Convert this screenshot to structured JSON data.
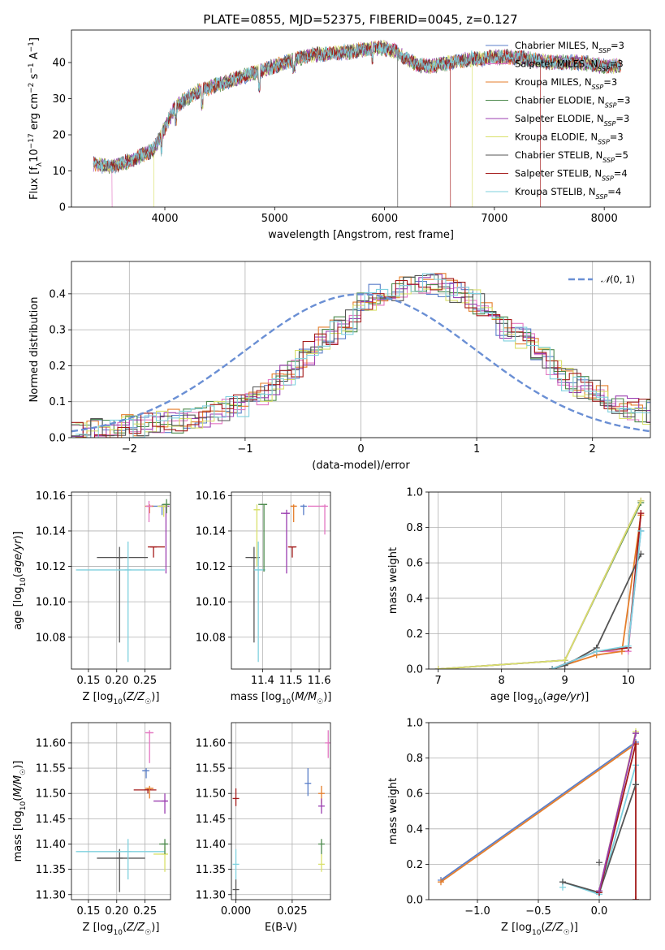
{
  "chart_data": [
    {
      "id": "spectrum",
      "type": "line",
      "title": "PLATE=0855, MJD=52375, FIBERID=0045, z=0.127",
      "xlabel": "wavelength [Angstrom, rest frame]",
      "ylabel": "Flux [f_λ 10^-17 erg cm^-2 s^-1 A^-1]",
      "xlim": [
        3150,
        8420
      ],
      "ylim": [
        0,
        49
      ],
      "xticks": [
        4000,
        5000,
        6000,
        7000,
        8000
      ],
      "yticks": [
        0,
        10,
        20,
        30,
        40
      ],
      "grid": false,
      "legend_position": "top-right",
      "legend": [
        "Chabrier MILES, N_SSP=3",
        "Salpeter MILES, N_SSP=3",
        "Kroupa MILES, N_SSP=3",
        "Chabrier ELODIE, N_SSP=3",
        "Salpeter ELODIE, N_SSP=3",
        "Kroupa ELODIE, N_SSP=3",
        "Chabrier STELIB, N_SSP=5",
        "Salpeter STELIB, N_SSP=4",
        "Kroupa STELIB, N_SSP=4"
      ],
      "continuum": {
        "x": [
          3350,
          3500,
          3700,
          3900,
          4000,
          4100,
          4300,
          4500,
          4700,
          4900,
          5100,
          5300,
          5500,
          5700,
          5900,
          6000,
          6100,
          6200,
          6300,
          6400,
          6500,
          6600,
          6700,
          6800,
          6900,
          7000,
          7100,
          7200,
          7300,
          7400,
          7500,
          7600,
          7700,
          7800,
          7900,
          8000,
          8150
        ],
        "y": [
          12,
          11,
          13,
          16,
          22,
          28,
          32,
          34,
          36,
          38,
          40,
          42,
          42.5,
          43,
          44,
          44,
          43,
          41,
          39.5,
          39,
          39.5,
          40,
          40.5,
          41,
          41,
          41.5,
          41.5,
          41.5,
          41,
          40.5,
          40,
          40,
          40,
          40,
          39.5,
          39,
          39
        ]
      },
      "model_edges": [
        {
          "series": "Salpeter MILES, N_SSP=3",
          "x": 3520
        },
        {
          "series": "Kroupa ELODIE, N_SSP=3",
          "x": 3900
        },
        {
          "series": "Chabrier STELIB, N_SSP=5",
          "x": 6120
        },
        {
          "series": "Salpeter STELIB, N_SSP=4",
          "x": 6600
        },
        {
          "series": "Kroupa ELODIE, N_SSP=3",
          "x": 6800
        },
        {
          "series": "Salpeter STELIB, N_SSP=4",
          "x": 7420
        }
      ]
    },
    {
      "id": "residuals",
      "type": "line",
      "xlabel": "(data-model)/error",
      "ylabel": "Normed distribution",
      "xlim": [
        -2.5,
        2.5
      ],
      "ylim": [
        0,
        0.49
      ],
      "xticks": [
        -2,
        -1,
        0,
        1,
        2
      ],
      "yticks": [
        0.0,
        0.1,
        0.2,
        0.3,
        0.4
      ],
      "grid": true,
      "legend_position": "top-right",
      "legend": [
        "N(0,1)"
      ],
      "bin_width": 0.1,
      "histogram_envelope": {
        "x": [
          -2.5,
          -2.0,
          -1.5,
          -1.0,
          -0.7,
          -0.5,
          -0.3,
          -0.1,
          0.0,
          0.2,
          0.4,
          0.5,
          0.6,
          0.7,
          0.9,
          1.0,
          1.2,
          1.4,
          1.6,
          1.8,
          2.0,
          2.2,
          2.5
        ],
        "y": [
          0.015,
          0.03,
          0.05,
          0.09,
          0.15,
          0.22,
          0.28,
          0.32,
          0.37,
          0.41,
          0.42,
          0.43,
          0.43,
          0.42,
          0.39,
          0.38,
          0.32,
          0.28,
          0.22,
          0.16,
          0.13,
          0.09,
          0.07
        ]
      }
    },
    {
      "id": "age_vs_Z",
      "type": "scatter",
      "xlabel": "Z [log10(Z/Z☉)]",
      "ylabel": "age  [log10(age/yr)]",
      "xlim": [
        0.12,
        0.295
      ],
      "ylim": [
        10.062,
        10.162
      ],
      "xticks": [
        0.15,
        0.2,
        0.25
      ],
      "yticks": [
        10.08,
        10.1,
        10.12,
        10.14,
        10.16
      ],
      "grid": true,
      "points": [
        {
          "series": "Chabrier STELIB",
          "x": 0.205,
          "xerr": [
            0.165,
            0.255
          ],
          "y": 10.125,
          "yerr": [
            10.077,
            10.131
          ]
        },
        {
          "series": "Kroupa STELIB",
          "x": 0.22,
          "xerr": [
            0.128,
            0.285
          ],
          "y": 10.118,
          "yerr": [
            10.066,
            10.134
          ]
        },
        {
          "series": "Salpeter STELIB",
          "x": 0.265,
          "xerr": [
            0.255,
            0.285
          ],
          "y": 10.131,
          "yerr": [
            10.125,
            10.131
          ]
        },
        {
          "series": "Chabrier MILES",
          "x": 0.28,
          "xerr": [
            0.262,
            0.29
          ],
          "y": 10.154,
          "yerr": [
            10.149,
            10.155
          ]
        },
        {
          "series": "Salpeter ELODIE",
          "x": 0.287,
          "xerr": [
            0.275,
            0.29
          ],
          "y": 10.154,
          "yerr": [
            10.116,
            10.155
          ]
        },
        {
          "series": "Kroupa MILES",
          "x": 0.258,
          "xerr": [
            0.25,
            0.265
          ],
          "y": 10.154,
          "yerr": [
            10.15,
            10.155
          ]
        },
        {
          "series": "Salpeter MILES",
          "x": 0.257,
          "xerr": [
            0.252,
            0.262
          ],
          "y": 10.154,
          "yerr": [
            10.145,
            10.157
          ]
        },
        {
          "series": "Kroupa ELODIE",
          "x": 0.283,
          "xerr": [
            0.272,
            0.29
          ],
          "y": 10.154,
          "yerr": [
            10.148,
            10.155
          ]
        },
        {
          "series": "Chabrier ELODIE",
          "x": 0.288,
          "xerr": [
            0.28,
            0.292
          ],
          "y": 10.155,
          "yerr": [
            10.15,
            10.158
          ]
        }
      ]
    },
    {
      "id": "age_vs_mass",
      "type": "scatter",
      "xlabel": "mass [log10(M/M☉)]",
      "ylabel": "",
      "xlim": [
        11.29,
        11.64
      ],
      "ylim": [
        10.062,
        10.162
      ],
      "xticks": [
        11.4,
        11.5,
        11.6
      ],
      "yticks": [
        10.08,
        10.1,
        10.12,
        10.14,
        10.16
      ],
      "grid": true,
      "points": [
        {
          "series": "Chabrier STELIB",
          "x": 11.37,
          "xerr": [
            11.34,
            11.39
          ],
          "y": 10.125,
          "yerr": [
            10.077,
            10.131
          ]
        },
        {
          "series": "Kroupa STELIB",
          "x": 11.385,
          "xerr": [
            11.37,
            11.41
          ],
          "y": 10.118,
          "yerr": [
            10.066,
            10.134
          ]
        },
        {
          "series": "Chabrier ELODIE",
          "x": 11.405,
          "xerr": [
            11.385,
            11.415
          ],
          "y": 10.155,
          "yerr": [
            10.117,
            10.155
          ]
        },
        {
          "series": "Kroupa ELODIE",
          "x": 11.38,
          "xerr": [
            11.37,
            11.39
          ],
          "y": 10.152,
          "yerr": [
            10.12,
            10.155
          ]
        },
        {
          "series": "Salpeter STELIB",
          "x": 11.505,
          "xerr": [
            11.49,
            11.52
          ],
          "y": 10.131,
          "yerr": [
            10.125,
            10.131
          ]
        },
        {
          "series": "Salpeter ELODIE",
          "x": 11.485,
          "xerr": [
            11.465,
            11.495
          ],
          "y": 10.15,
          "yerr": [
            10.116,
            10.152
          ]
        },
        {
          "series": "Kroupa MILES",
          "x": 11.51,
          "xerr": [
            11.5,
            11.52
          ],
          "y": 10.154,
          "yerr": [
            10.145,
            10.155
          ]
        },
        {
          "series": "Chabrier MILES",
          "x": 11.545,
          "xerr": [
            11.535,
            11.55
          ],
          "y": 10.154,
          "yerr": [
            10.149,
            10.155
          ]
        },
        {
          "series": "Salpeter MILES",
          "x": 11.62,
          "xerr": [
            11.56,
            11.625
          ],
          "y": 10.154,
          "yerr": [
            10.138,
            10.155
          ]
        }
      ]
    },
    {
      "id": "mass_weight_vs_age",
      "type": "line",
      "xlabel": "age  [log10(age/yr)]",
      "ylabel": "mass weight",
      "xlim": [
        6.85,
        10.35
      ],
      "ylim": [
        0,
        1.0
      ],
      "xticks": [
        7,
        8,
        9,
        10
      ],
      "yticks": [
        0.0,
        0.2,
        0.4,
        0.6,
        0.8,
        1.0
      ],
      "grid": true,
      "series": [
        {
          "name": "Chabrier MILES",
          "x": [
            8.8,
            9.5,
            10.0,
            10.2
          ],
          "y": [
            0.0,
            0.1,
            0.12,
            0.78
          ]
        },
        {
          "name": "Salpeter MILES",
          "x": [
            8.8,
            9.5,
            10.0,
            10.2
          ],
          "y": [
            0.0,
            0.1,
            0.1,
            0.88
          ]
        },
        {
          "name": "Kroupa MILES",
          "x": [
            8.8,
            9.5,
            9.9,
            10.2
          ],
          "y": [
            0.0,
            0.08,
            0.1,
            0.87
          ]
        },
        {
          "name": "Chabrier ELODIE",
          "x": [
            7.0,
            9.0,
            10.2
          ],
          "y": [
            0.0,
            0.05,
            0.94
          ]
        },
        {
          "name": "Salpeter ELODIE",
          "x": [
            7.0,
            9.0,
            10.2
          ],
          "y": [
            0.0,
            0.05,
            0.95
          ]
        },
        {
          "name": "Kroupa ELODIE",
          "x": [
            7.0,
            9.0,
            10.2
          ],
          "y": [
            0.0,
            0.05,
            0.95
          ]
        },
        {
          "name": "Chabrier STELIB",
          "x": [
            8.8,
            9.0,
            9.5,
            10.2
          ],
          "y": [
            0.0,
            0.02,
            0.12,
            0.65
          ]
        },
        {
          "name": "Salpeter STELIB",
          "x": [
            8.8,
            9.5,
            10.0,
            10.2
          ],
          "y": [
            0.0,
            0.1,
            0.12,
            0.88
          ]
        },
        {
          "name": "Kroupa STELIB",
          "x": [
            8.8,
            9.5,
            10.0,
            10.2
          ],
          "y": [
            0.0,
            0.1,
            0.13,
            0.78
          ]
        }
      ]
    },
    {
      "id": "mass_vs_Z",
      "type": "scatter",
      "xlabel": "Z [log10(Z/Z☉)]",
      "ylabel": "mass [log10(M/M☉)]",
      "xlim": [
        0.12,
        0.295
      ],
      "ylim": [
        11.29,
        11.64
      ],
      "xticks": [
        0.15,
        0.2,
        0.25
      ],
      "yticks": [
        11.3,
        11.35,
        11.4,
        11.45,
        11.5,
        11.55,
        11.6
      ],
      "grid": true,
      "points": [
        {
          "series": "Chabrier STELIB",
          "x": 0.205,
          "xerr": [
            0.165,
            0.25
          ],
          "y": 11.372,
          "yerr": [
            11.305,
            11.39
          ]
        },
        {
          "series": "Kroupa STELIB",
          "x": 0.22,
          "xerr": [
            0.128,
            0.285
          ],
          "y": 11.385,
          "yerr": [
            11.33,
            11.41
          ]
        },
        {
          "series": "Salpeter STELIB",
          "x": 0.255,
          "xerr": [
            0.23,
            0.27
          ],
          "y": 11.507,
          "yerr": [
            11.5,
            11.51
          ]
        },
        {
          "series": "Salpeter ELODIE",
          "x": 0.285,
          "xerr": [
            0.265,
            0.29
          ],
          "y": 11.485,
          "yerr": [
            11.46,
            11.5
          ]
        },
        {
          "series": "Kroupa ELODIE",
          "x": 0.285,
          "xerr": [
            0.265,
            0.29
          ],
          "y": 11.38,
          "yerr": [
            11.345,
            11.395
          ]
        },
        {
          "series": "Chabrier ELODIE",
          "x": 0.285,
          "xerr": [
            0.275,
            0.29
          ],
          "y": 11.4,
          "yerr": [
            11.38,
            11.41
          ]
        },
        {
          "series": "Chabrier MILES",
          "x": 0.252,
          "xerr": [
            0.245,
            0.255
          ],
          "y": 11.545,
          "yerr": [
            11.53,
            11.55
          ]
        },
        {
          "series": "Kroupa MILES",
          "x": 0.258,
          "xerr": [
            0.25,
            0.265
          ],
          "y": 11.51,
          "yerr": [
            11.49,
            11.515
          ]
        },
        {
          "series": "Salpeter MILES",
          "x": 0.258,
          "xerr": [
            0.25,
            0.265
          ],
          "y": 11.62,
          "yerr": [
            11.56,
            11.625
          ]
        }
      ]
    },
    {
      "id": "mass_vs_ebv",
      "type": "scatter",
      "xlabel": "E(B-V)",
      "ylabel": "",
      "xlim": [
        -0.002,
        0.042
      ],
      "ylim": [
        11.29,
        11.64
      ],
      "xticks": [
        0.0,
        0.025
      ],
      "xtick_labels": [
        "0.000",
        "0.025"
      ],
      "yticks": [
        11.3,
        11.35,
        11.4,
        11.45,
        11.5,
        11.55,
        11.6
      ],
      "grid": true,
      "points": [
        {
          "series": "Chabrier STELIB",
          "x": 0.0,
          "y": 11.31,
          "yerr": [
            11.29,
            11.33
          ]
        },
        {
          "series": "Kroupa STELIB",
          "x": 0.0,
          "y": 11.36,
          "yerr": [
            11.33,
            11.39
          ]
        },
        {
          "series": "Salpeter STELIB",
          "x": 0.0,
          "y": 11.49,
          "yerr": [
            11.475,
            11.51
          ]
        },
        {
          "series": "Chabrier MILES",
          "x": 0.032,
          "y": 11.52,
          "yerr": [
            11.495,
            11.55
          ]
        },
        {
          "series": "Kroupa MILES",
          "x": 0.038,
          "y": 11.5,
          "yerr": [
            11.48,
            11.515
          ]
        },
        {
          "series": "Salpeter ELODIE",
          "x": 0.038,
          "y": 11.475,
          "yerr": [
            11.46,
            11.49
          ]
        },
        {
          "series": "Chabrier ELODIE",
          "x": 0.038,
          "y": 11.4,
          "yerr": [
            11.38,
            11.41
          ]
        },
        {
          "series": "Kroupa ELODIE",
          "x": 0.038,
          "y": 11.36,
          "yerr": [
            11.345,
            11.38
          ]
        },
        {
          "series": "Salpeter MILES",
          "x": 0.041,
          "y": 11.6,
          "yerr": [
            11.57,
            11.625
          ]
        }
      ]
    },
    {
      "id": "mass_weight_vs_Z",
      "type": "line",
      "xlabel": "Z [log10(Z/Z☉)]",
      "ylabel": "mass weight",
      "xlim": [
        -1.4,
        0.42
      ],
      "ylim": [
        0,
        1.0
      ],
      "xticks": [
        -1.0,
        -0.5,
        0.0
      ],
      "yticks": [
        0.0,
        0.2,
        0.4,
        0.6,
        0.8,
        1.0
      ],
      "grid": true,
      "series": [
        {
          "name": "Chabrier MILES",
          "x": [
            -1.3,
            0.3
          ],
          "y": [
            0.11,
            0.89
          ]
        },
        {
          "name": "Kroupa MILES",
          "x": [
            -1.3,
            0.3
          ],
          "y": [
            0.1,
            0.88
          ]
        },
        {
          "name": "Kroupa STELIB",
          "x": [
            -0.3,
            0.0,
            0.3
          ],
          "y": [
            0.1,
            0.03,
            0.76
          ]
        },
        {
          "name": "Chabrier STELIB",
          "x": [
            -0.3,
            0.0,
            0.3
          ],
          "y": [
            0.1,
            0.04,
            0.65
          ]
        },
        {
          "name": "Chabrier ELODIE",
          "x": [
            0.0,
            0.3
          ],
          "y": [
            0.05,
            0.94
          ]
        },
        {
          "name": "Kroupa ELODIE",
          "x": [
            0.0,
            0.3
          ],
          "y": [
            0.05,
            0.95
          ]
        },
        {
          "name": "Salpeter STELIB",
          "x": [
            0.0,
            0.3,
            0.3
          ],
          "y": [
            0.04,
            0.88,
            0.0
          ]
        },
        {
          "name": "Salpeter ELODIE",
          "x": [
            0.0,
            0.3
          ],
          "y": [
            0.05,
            0.94
          ]
        }
      ],
      "markers": [
        {
          "series": "Chabrier STELIB",
          "x": 0.0,
          "y": 0.21
        },
        {
          "series": "Chabrier STELIB",
          "x": 0.3,
          "y": 0.65
        },
        {
          "series": "Kroupa STELIB",
          "x": -0.3,
          "y": 0.07
        },
        {
          "series": "Salpeter STELIB",
          "x": 0.3,
          "y": 0.0
        }
      ]
    }
  ],
  "colors": {
    "Chabrier MILES": "#5b7fc9",
    "Salpeter MILES": "#e377c2",
    "Kroupa MILES": "#e57e2b",
    "Chabrier ELODIE": "#4d8a4d",
    "Salpeter ELODIE": "#9b3fb0",
    "Kroupa ELODIE": "#d9e06a",
    "Chabrier STELIB": "#555555",
    "Salpeter STELIB": "#a31919",
    "Kroupa STELIB": "#7ed0de",
    "Normal": "#6a8fd4"
  }
}
